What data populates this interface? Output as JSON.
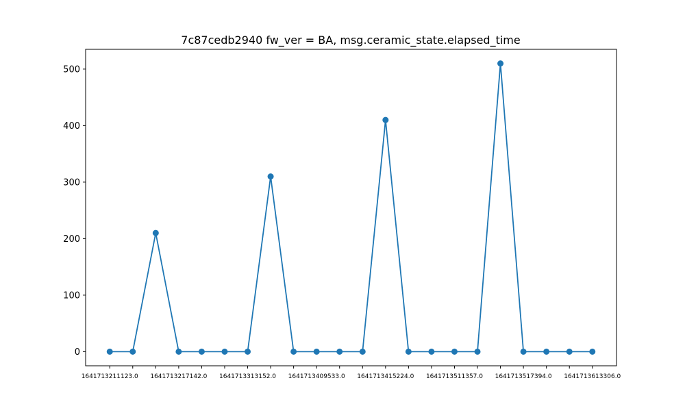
{
  "chart_data": {
    "type": "line",
    "title": "7c87cedb2940 fw_ver = BA, msg.ceramic_state.elapsed_time",
    "xlabel": "",
    "ylabel": "",
    "ylim": [
      -25,
      535
    ],
    "yticks": [
      0,
      100,
      200,
      300,
      400,
      500
    ],
    "x_tick_labels": [
      "1641713211123.0",
      "1641713217142.0",
      "1641713313152.0",
      "1641713409533.0",
      "1641713415224.0",
      "1641713511357.0",
      "1641713517394.0",
      "1641713613306.0"
    ],
    "values": [
      0,
      0,
      210,
      0,
      0,
      0,
      0,
      310,
      0,
      0,
      0,
      0,
      410,
      0,
      0,
      0,
      0,
      510,
      0,
      0,
      0,
      0
    ],
    "grid": false,
    "color": "#1f77b4"
  }
}
